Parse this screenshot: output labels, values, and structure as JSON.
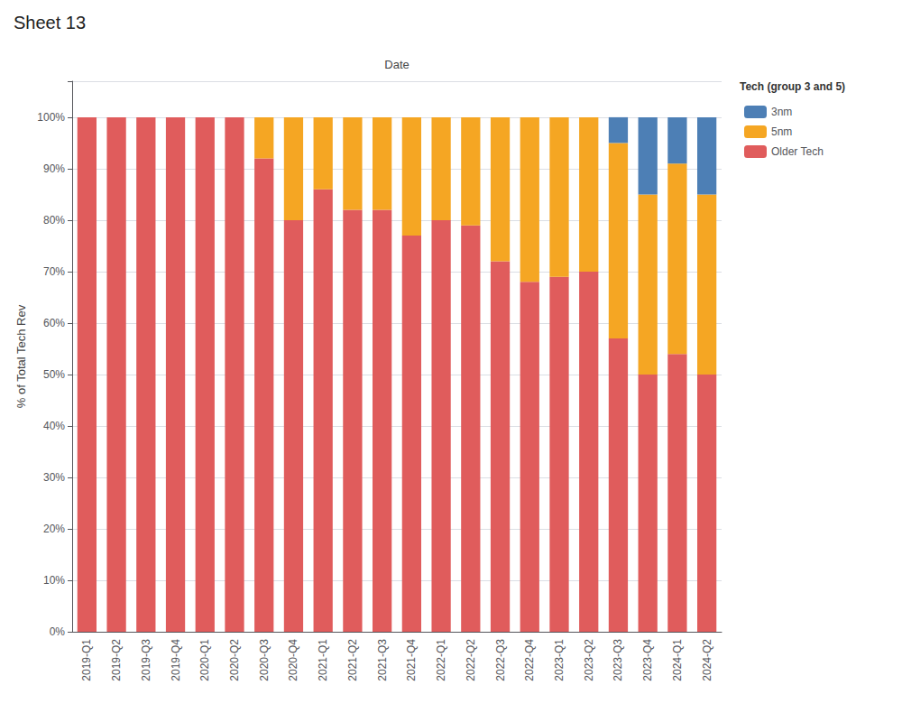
{
  "chart_data": {
    "type": "bar",
    "title": "Sheet 13",
    "xlabel": "Date",
    "ylabel": "% of Total Tech Rev",
    "legend_title": "Tech (group 3 and 5)",
    "categories": [
      "2019-Q1",
      "2019-Q2",
      "2019-Q3",
      "2019-Q4",
      "2020-Q1",
      "2020-Q2",
      "2020-Q3",
      "2020-Q4",
      "2021-Q1",
      "2021-Q2",
      "2021-Q3",
      "2021-Q4",
      "2022-Q1",
      "2022-Q2",
      "2022-Q3",
      "2022-Q4",
      "2023-Q1",
      "2023-Q2",
      "2023-Q3",
      "2023-Q4",
      "2024-Q1",
      "2024-Q2"
    ],
    "series": [
      {
        "name": "Older Tech",
        "color": "#e05c5c",
        "values": [
          100,
          100,
          100,
          100,
          100,
          100,
          92,
          80,
          86,
          82,
          82,
          77,
          80,
          79,
          72,
          68,
          69,
          70,
          57,
          50,
          54,
          50
        ]
      },
      {
        "name": "5nm",
        "color": "#f5a623",
        "values": [
          0,
          0,
          0,
          0,
          0,
          0,
          8,
          20,
          14,
          18,
          18,
          23,
          20,
          21,
          28,
          32,
          31,
          30,
          38,
          35,
          37,
          35
        ]
      },
      {
        "name": "3nm",
        "color": "#4d7fb5",
        "values": [
          0,
          0,
          0,
          0,
          0,
          0,
          0,
          0,
          0,
          0,
          0,
          0,
          0,
          0,
          0,
          0,
          0,
          0,
          5,
          15,
          9,
          15
        ]
      }
    ],
    "stacked": true,
    "ylim": [
      0,
      107
    ],
    "yticks": [
      {
        "value": 0,
        "label": "0%"
      },
      {
        "value": 10,
        "label": "10%"
      },
      {
        "value": 20,
        "label": "20%"
      },
      {
        "value": 30,
        "label": "30%"
      },
      {
        "value": 40,
        "label": "40%"
      },
      {
        "value": 50,
        "label": "50%"
      },
      {
        "value": 60,
        "label": "60%"
      },
      {
        "value": 70,
        "label": "70%"
      },
      {
        "value": 80,
        "label": "80%"
      },
      {
        "value": 90,
        "label": "90%"
      },
      {
        "value": 100,
        "label": "100%"
      }
    ],
    "grid": true,
    "legend": "top right"
  }
}
